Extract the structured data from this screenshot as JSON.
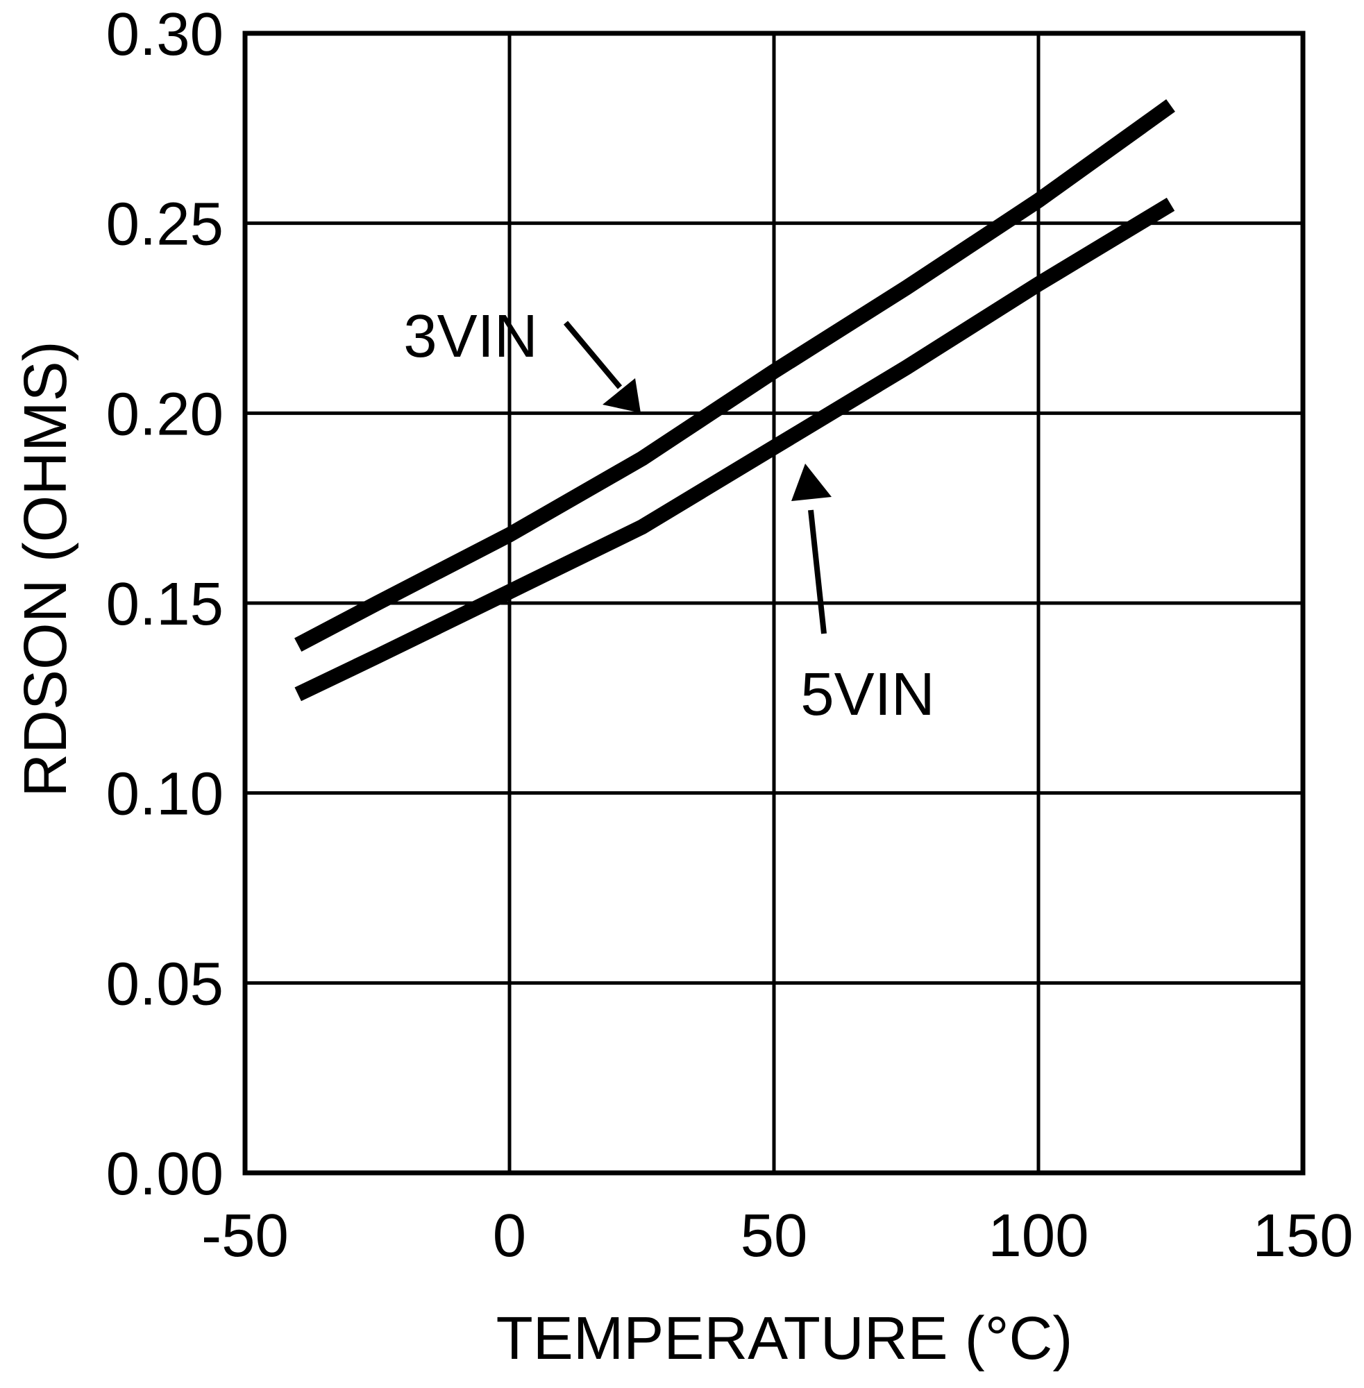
{
  "page": {
    "background": "#ffffff",
    "ink": "#000000"
  },
  "chart_data": {
    "type": "line",
    "title": "",
    "xlabel": "TEMPERATURE (°C)",
    "ylabel": "RDSON (OHMS)",
    "xlim": [
      -50,
      150
    ],
    "ylim": [
      0.0,
      0.3
    ],
    "grid": true,
    "legend_position": "inline-annotations",
    "x_tick_labels": [
      "-50",
      "0",
      "50",
      "100",
      "150"
    ],
    "x_tick_values": [
      -50,
      0,
      50,
      100,
      150
    ],
    "y_tick_labels": [
      "0.30",
      "0.25",
      "0.20",
      "0.15",
      "0.10",
      "0.05",
      "0.00"
    ],
    "y_tick_values": [
      0.3,
      0.25,
      0.2,
      0.15,
      0.1,
      0.05,
      0.0
    ],
    "series": [
      {
        "name": "3VIN",
        "x": [
          -40,
          -25,
          0,
          25,
          50,
          75,
          100,
          125
        ],
        "y": [
          0.139,
          0.15,
          0.168,
          0.188,
          0.211,
          0.233,
          0.256,
          0.281
        ]
      },
      {
        "name": "5VIN",
        "x": [
          -40,
          -25,
          0,
          25,
          50,
          75,
          100,
          125
        ],
        "y": [
          0.126,
          0.136,
          0.153,
          0.17,
          0.191,
          0.212,
          0.234,
          0.255
        ]
      }
    ],
    "annotations": [
      {
        "label": "3VIN",
        "points_to": "upper curve"
      },
      {
        "label": "5VIN",
        "points_to": "lower curve"
      }
    ]
  }
}
